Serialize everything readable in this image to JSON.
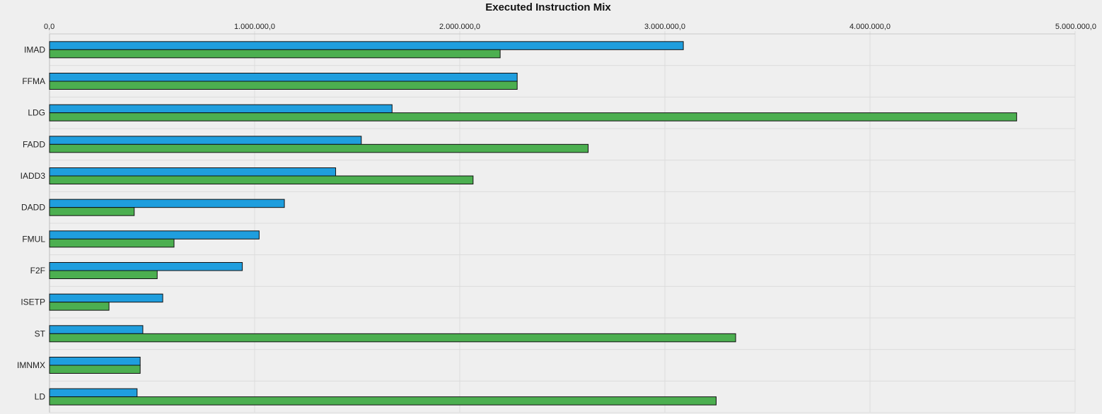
{
  "chart_data": {
    "type": "bar",
    "orientation": "horizontal",
    "title": "Executed Instruction Mix",
    "xlabel": "",
    "ylabel": "",
    "xlim": [
      0,
      5000000
    ],
    "x_ticks": [
      0,
      1000000,
      2000000,
      3000000,
      4000000,
      5000000
    ],
    "x_tick_labels": [
      "0,0",
      "1.000.000,0",
      "2.000.000,0",
      "3.000.000,0",
      "4.000.000,0",
      "5.000.000,0"
    ],
    "x_axis_position": "top",
    "grid": true,
    "categories": [
      "IMAD",
      "FFMA",
      "LDG",
      "FADD",
      "IADD3",
      "DADD",
      "FMUL",
      "F2F",
      "ISETP",
      "ST",
      "IMNMX",
      "LD"
    ],
    "series": [
      {
        "color": "#1f9ede",
        "values": [
          3090000,
          2280000,
          1670000,
          1520000,
          1395000,
          1145000,
          1022000,
          940000,
          552000,
          455000,
          442000,
          427000
        ]
      },
      {
        "color": "#4caf50",
        "values": [
          2197000,
          2280000,
          4715000,
          2626000,
          2065000,
          413000,
          607000,
          525000,
          290000,
          3345000,
          442000,
          3250000
        ]
      }
    ]
  }
}
